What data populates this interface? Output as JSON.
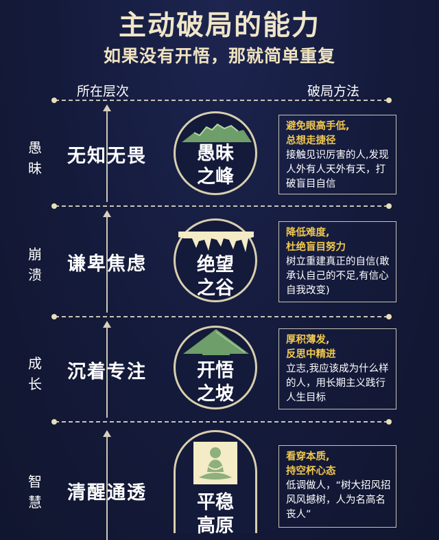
{
  "header": {
    "title": "主动破局的能力",
    "subtitle": "如果没有开悟，那就简单重复"
  },
  "columns": {
    "left": "所在层次",
    "right": "破局方法"
  },
  "stages": [
    {
      "side_label": "愚昧",
      "level": "无知无畏",
      "circle_line1": "愚昧",
      "circle_line2": "之峰",
      "icon": "mountain-peak-icon",
      "tip1": "避免眼高手低,",
      "tip2": "总想走捷径",
      "body": "接触见识厉害的人,发现人外有人天外有天，打破盲目自信"
    },
    {
      "side_label": "崩溃",
      "level": "谦卑焦虑",
      "circle_line1": "绝望",
      "circle_line2": "之谷",
      "icon": "valley-icon",
      "tip1": "降低难度,",
      "tip2": "杜绝盲目努力",
      "body": "树立重建真正的自信(敢承认自己的不足,有信心自我改变)"
    },
    {
      "side_label": "成长",
      "level": "沉着专注",
      "circle_line1": "开悟",
      "circle_line2": "之坡",
      "icon": "up-arrow-icon",
      "tip1": "厚积薄发,",
      "tip2": "反思中精进",
      "body": "立志,我应该成为什么样的人，用长期主义践行人生目标"
    },
    {
      "side_label": "智慧",
      "level": "清醒通透",
      "circle_line1": "平稳",
      "circle_line2": "高原",
      "icon": "meditation-icon",
      "tip1": "看穿本质,",
      "tip2": "持空杯心态",
      "body": "低调做人，“树大招风招风风撼树，人为名高名丧人”"
    }
  ],
  "colors": {
    "background": "#141a3a",
    "highlight": "#f1c84e",
    "title": "#f0e6c8",
    "icon_green": "#6e9e6a",
    "icon_cream": "#f3ecc6"
  }
}
